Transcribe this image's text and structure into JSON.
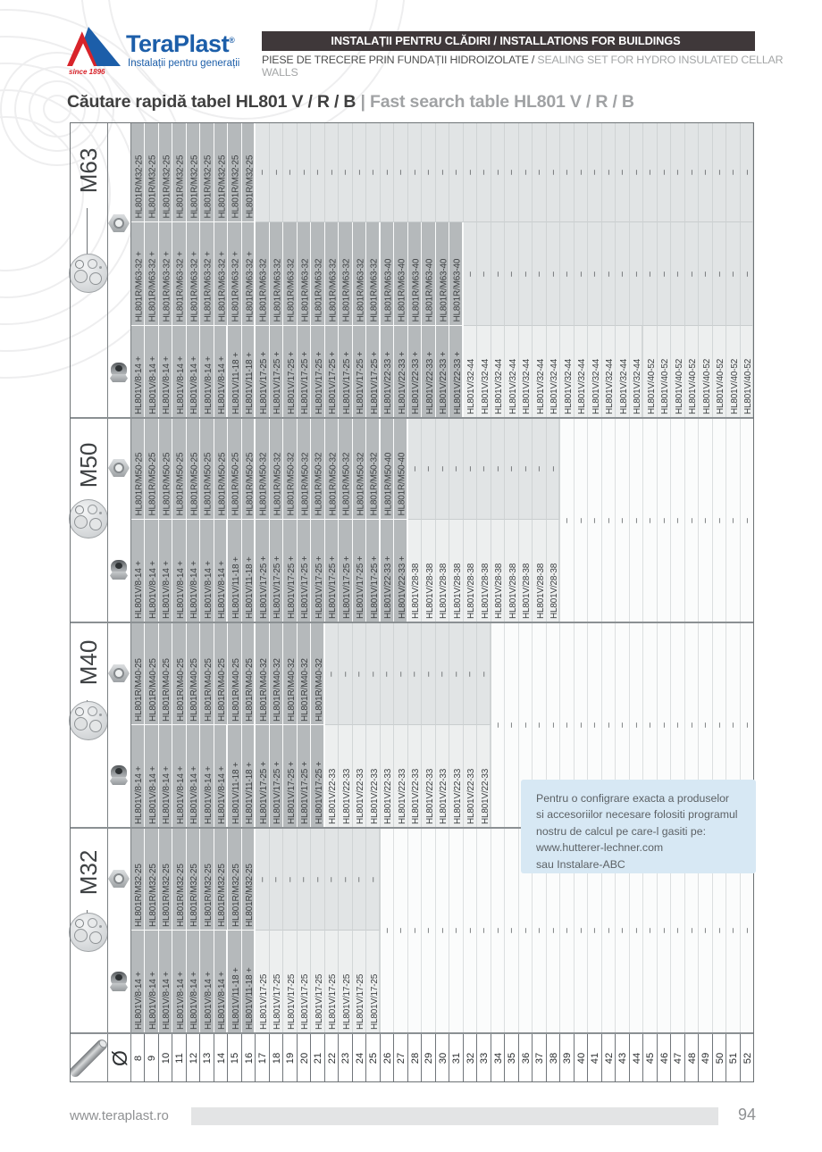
{
  "header": {
    "logo": {
      "brand": "TeraPlast",
      "reg": "®",
      "tagline": "Instalații pentru generații",
      "since": "since 1896",
      "brand_color": "#1c5ea9",
      "accent_red": "#d8232a"
    },
    "banner": {
      "text": "INSTALAȚII PENTRU CLĂDIRI / INSTALLATIONS FOR BUILDINGS",
      "bg": "#3f383a"
    },
    "subtitle": {
      "ro": "PIESE DE TRECERE PRIN FUNDAȚII HIDROIZOLATE /",
      "en": " SEALING SET FOR HYDRO INSULATED CELLAR WALLS"
    },
    "title": {
      "ro": "Căutare rapidă tabel HL801 V / R / B",
      "sep": " | ",
      "en": "Fast search table HL801 V / R / B"
    }
  },
  "table": {
    "diameter_symbol": "Ø",
    "diameters": [
      8,
      9,
      10,
      11,
      12,
      13,
      14,
      15,
      16,
      17,
      18,
      19,
      20,
      21,
      22,
      23,
      24,
      25,
      26,
      27,
      28,
      29,
      30,
      31,
      32,
      33,
      34,
      35,
      36,
      37,
      38,
      39,
      40,
      41,
      42,
      43,
      44,
      45,
      46,
      47,
      48,
      49,
      50,
      51,
      52
    ],
    "empty_mark": "–",
    "legend_icons": {
      "group_image": "sealing-plug-image",
      "reducer": "locknut-icon",
      "gland": "cable-gland-icon",
      "diameter": "pipe-icon"
    },
    "colors": {
      "combo": "#b5b9bb",
      "light": "#e1e4e5",
      "single": "#edefef",
      "empty": "#fbfcfc"
    },
    "groups": [
      {
        "label": "M63",
        "rows": [
          {
            "segments": [
              {
                "from": 8,
                "to": 16,
                "text": "HL801R/M32-25",
                "style": "combo"
              },
              {
                "from": 17,
                "to": 52,
                "text": "–",
                "style": "light"
              }
            ]
          },
          {
            "segments": [
              {
                "from": 8,
                "to": 16,
                "text": "HL801R/M63-32 +",
                "style": "combo"
              },
              {
                "from": 17,
                "to": 25,
                "text": "HL801R/M63-32",
                "style": "combo"
              },
              {
                "from": 26,
                "to": 31,
                "text": "HL801R/M63-40",
                "style": "combo"
              },
              {
                "from": 32,
                "to": 52,
                "text": "–",
                "style": "light"
              }
            ]
          },
          {
            "segments": [
              {
                "from": 8,
                "to": 14,
                "text": "HL801V/8-14 +",
                "style": "combo"
              },
              {
                "from": 15,
                "to": 16,
                "text": "HL801V/11-18 +",
                "style": "combo"
              },
              {
                "from": 17,
                "to": 25,
                "text": "HL801V/17-25 +",
                "style": "combo"
              },
              {
                "from": 26,
                "to": 31,
                "text": "HL801V/22-33 +",
                "style": "combo"
              },
              {
                "from": 32,
                "to": 44,
                "text": "HL801V/32-44",
                "style": "single"
              },
              {
                "from": 45,
                "to": 52,
                "text": "HL801V/40-52",
                "style": "single"
              }
            ]
          }
        ]
      },
      {
        "label": "M50",
        "merged_empty_from": 39,
        "rows": [
          {
            "segments": [
              {
                "from": 8,
                "to": 16,
                "text": "HL801R/M50-25",
                "style": "combo"
              },
              {
                "from": 17,
                "to": 25,
                "text": "HL801R/M50-32",
                "style": "combo"
              },
              {
                "from": 26,
                "to": 27,
                "text": "HL801R/M50-40",
                "style": "combo"
              },
              {
                "from": 28,
                "to": 38,
                "text": "–",
                "style": "light"
              }
            ]
          },
          {
            "segments": [
              {
                "from": 8,
                "to": 14,
                "text": "HL801V/8-14 +",
                "style": "combo"
              },
              {
                "from": 15,
                "to": 16,
                "text": "HL801V/11-18 +",
                "style": "combo"
              },
              {
                "from": 17,
                "to": 25,
                "text": "HL801V/17-25 +",
                "style": "combo"
              },
              {
                "from": 26,
                "to": 27,
                "text": "HL801V/22-33 +",
                "style": "combo"
              },
              {
                "from": 28,
                "to": 38,
                "text": "HL801V/28-38",
                "style": "single"
              }
            ]
          }
        ]
      },
      {
        "label": "M40",
        "merged_empty_from": 34,
        "rows": [
          {
            "segments": [
              {
                "from": 8,
                "to": 16,
                "text": "HL801R/M40-25",
                "style": "combo"
              },
              {
                "from": 17,
                "to": 21,
                "text": "HL801R/M40-32",
                "style": "combo"
              },
              {
                "from": 22,
                "to": 33,
                "text": "–",
                "style": "light"
              }
            ]
          },
          {
            "segments": [
              {
                "from": 8,
                "to": 14,
                "text": "HL801V/8-14 +",
                "style": "combo"
              },
              {
                "from": 15,
                "to": 16,
                "text": "HL801V/11-18 +",
                "style": "combo"
              },
              {
                "from": 17,
                "to": 21,
                "text": "HL801V/17-25 +",
                "style": "combo"
              },
              {
                "from": 22,
                "to": 33,
                "text": "HL801V/22-33",
                "style": "single"
              }
            ]
          }
        ]
      },
      {
        "label": "M32",
        "merged_empty_from": 26,
        "rows": [
          {
            "segments": [
              {
                "from": 8,
                "to": 16,
                "text": "HL801R/M32-25",
                "style": "combo"
              },
              {
                "from": 17,
                "to": 25,
                "text": "–",
                "style": "light"
              }
            ]
          },
          {
            "segments": [
              {
                "from": 8,
                "to": 14,
                "text": "HL801V/8-14 +",
                "style": "combo"
              },
              {
                "from": 15,
                "to": 16,
                "text": "HL801V/11-18 +",
                "style": "combo"
              },
              {
                "from": 17,
                "to": 25,
                "text": "HL801V/17-25",
                "style": "single"
              }
            ]
          }
        ]
      }
    ]
  },
  "note_box": {
    "text": "Pentru o configrare exacta a produselor\nsi accesoriilor necesare folositi programul\nnostru de calcul pe care-l gasiti pe:\nwww.hutterer-lechner.com\nsau Instalare-ABC",
    "bg": "#d7e8f4"
  },
  "footer": {
    "website": "www.teraplast.ro",
    "page": "94"
  }
}
